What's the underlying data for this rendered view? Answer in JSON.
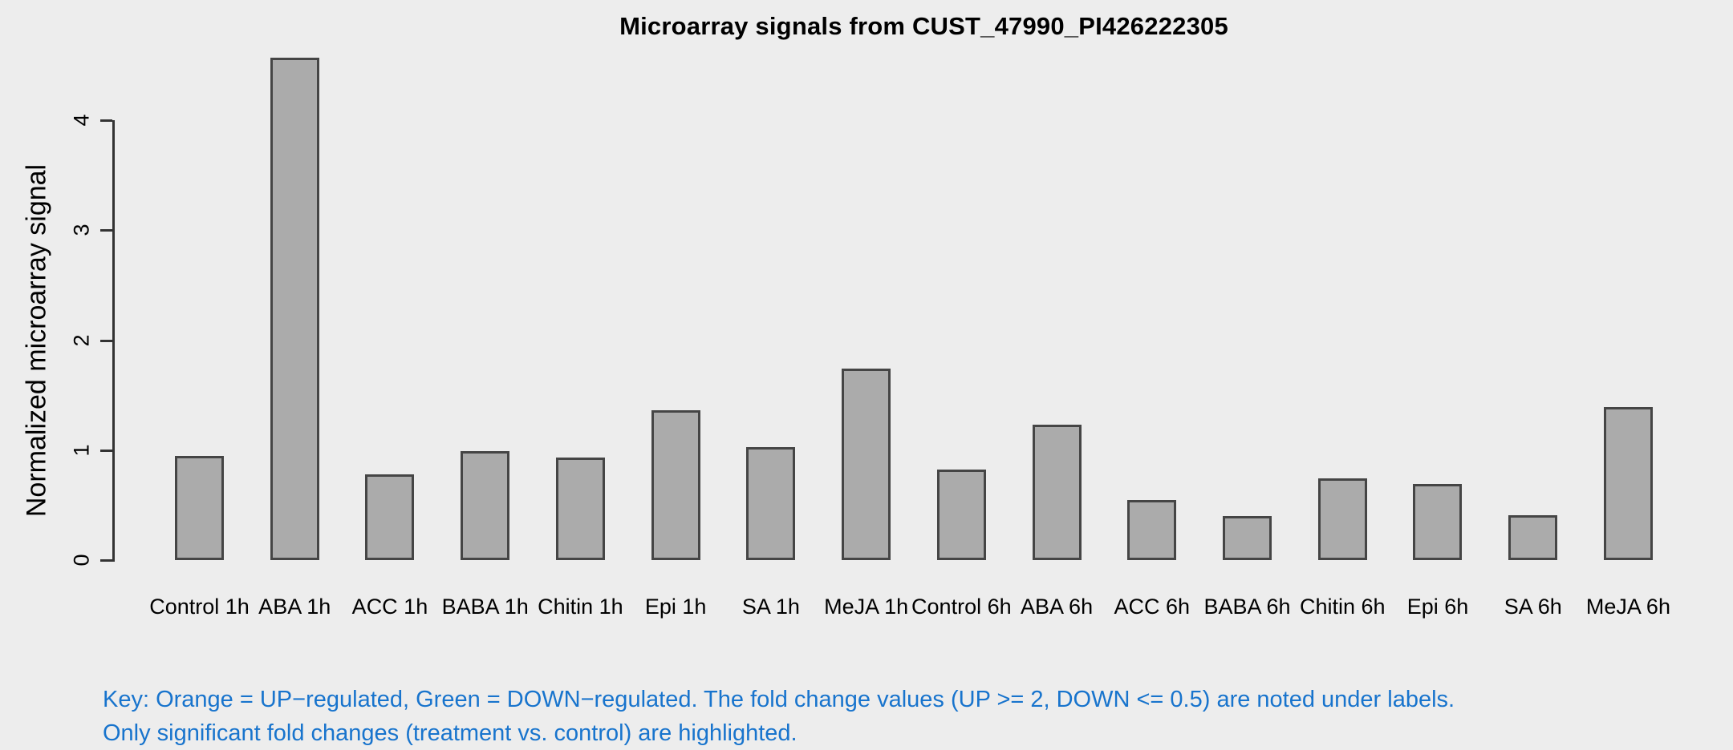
{
  "chart_data": {
    "type": "bar",
    "title": "Microarray signals from CUST_47990_PI426222305",
    "xlabel": "",
    "ylabel": "Normalized microarray signal",
    "categories": [
      "Control 1h",
      "ABA 1h",
      "ACC 1h",
      "BABA 1h",
      "Chitin 1h",
      "Epi 1h",
      "SA 1h",
      "MeJA 1h",
      "Control 6h",
      "ABA 6h",
      "ACC 6h",
      "BABA 6h",
      "Chitin 6h",
      "Epi 6h",
      "SA 6h",
      "MeJA 6h"
    ],
    "values": [
      0.95,
      4.57,
      0.78,
      0.99,
      0.93,
      1.36,
      1.03,
      1.74,
      0.82,
      1.23,
      0.55,
      0.4,
      0.74,
      0.69,
      0.41,
      1.39
    ],
    "ylim": [
      0,
      4.6
    ],
    "yticks": [
      0,
      1,
      2,
      3,
      4
    ],
    "grid": false,
    "legend_position": "none",
    "bar_fill_color": "#ABABAB",
    "bar_border_color": "#454545",
    "background_color": "#EDEDED",
    "axis_color": "#333333"
  },
  "key": {
    "line1": "Key: Orange = UP−regulated, Green = DOWN−regulated. The fold change values (UP >= 2, DOWN <= 0.5) are noted under labels.",
    "line2": "Only significant fold changes (treatment vs. control) are highlighted.",
    "text_color": "#1874CD"
  }
}
